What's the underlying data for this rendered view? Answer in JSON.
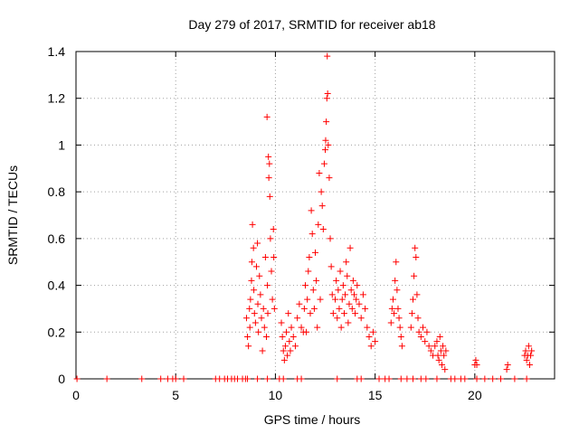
{
  "chart_data": {
    "type": "scatter",
    "title": "Day 279 of 2017, SRMTID for receiver ab18",
    "xlabel": "GPS time / hours",
    "ylabel": "SRMTID / TECUs",
    "xlim": [
      0,
      24
    ],
    "ylim": [
      0,
      1.4
    ],
    "xticks": [
      0,
      5,
      10,
      15,
      20
    ],
    "yticks": [
      0,
      0.2,
      0.4,
      0.6,
      0.8,
      1.0,
      1.2,
      1.4
    ],
    "xtick_labels": [
      "0",
      "5",
      "10",
      "15",
      "20"
    ],
    "ytick_labels": [
      "0",
      "0.2",
      "0.4",
      "0.6",
      "0.8",
      "1",
      "1.2",
      "1.4"
    ],
    "grid": true,
    "marker": "+",
    "color": "#ff0000",
    "series": [
      {
        "name": "SRMTID",
        "points": [
          [
            0.05,
            0
          ],
          [
            1.55,
            0
          ],
          [
            3.3,
            0
          ],
          [
            4.25,
            0
          ],
          [
            4.6,
            0
          ],
          [
            4.85,
            0
          ],
          [
            5.0,
            0
          ],
          [
            5.4,
            0
          ],
          [
            7.0,
            0
          ],
          [
            7.2,
            0
          ],
          [
            7.45,
            0
          ],
          [
            7.6,
            0
          ],
          [
            7.8,
            0
          ],
          [
            7.95,
            0
          ],
          [
            8.1,
            0
          ],
          [
            8.35,
            0
          ],
          [
            8.5,
            0
          ],
          [
            8.6,
            0
          ],
          [
            9.1,
            0
          ],
          [
            9.6,
            0
          ],
          [
            10.2,
            0
          ],
          [
            10.4,
            0
          ],
          [
            11.1,
            0
          ],
          [
            11.3,
            0
          ],
          [
            13.1,
            0
          ],
          [
            14.1,
            0
          ],
          [
            14.3,
            0
          ],
          [
            15.2,
            0
          ],
          [
            15.5,
            0
          ],
          [
            15.7,
            0
          ],
          [
            16.3,
            0
          ],
          [
            16.6,
            0
          ],
          [
            16.9,
            0
          ],
          [
            17.3,
            0
          ],
          [
            17.55,
            0
          ],
          [
            18.1,
            0
          ],
          [
            18.8,
            0
          ],
          [
            19.0,
            0
          ],
          [
            19.3,
            0
          ],
          [
            19.5,
            0
          ],
          [
            20.1,
            0
          ],
          [
            20.5,
            0
          ],
          [
            20.9,
            0
          ],
          [
            21.3,
            0
          ],
          [
            22.0,
            0
          ],
          [
            22.6,
            0
          ],
          [
            8.55,
            0.26
          ],
          [
            8.6,
            0.18
          ],
          [
            8.65,
            0.14
          ],
          [
            8.7,
            0.3
          ],
          [
            8.72,
            0.22
          ],
          [
            8.75,
            0.34
          ],
          [
            8.8,
            0.42
          ],
          [
            8.82,
            0.5
          ],
          [
            8.85,
            0.66
          ],
          [
            8.9,
            0.56
          ],
          [
            8.92,
            0.38
          ],
          [
            8.95,
            0.28
          ],
          [
            9.0,
            0.24
          ],
          [
            9.05,
            0.48
          ],
          [
            9.1,
            0.58
          ],
          [
            9.12,
            0.32
          ],
          [
            9.15,
            0.2
          ],
          [
            9.2,
            0.44
          ],
          [
            9.25,
            0.36
          ],
          [
            9.3,
            0.26
          ],
          [
            9.35,
            0.12
          ],
          [
            9.4,
            0.3
          ],
          [
            9.45,
            0.22
          ],
          [
            9.5,
            0.52
          ],
          [
            9.55,
            0.18
          ],
          [
            9.6,
            0.4
          ],
          [
            9.62,
            0.28
          ],
          [
            9.65,
            0.95
          ],
          [
            9.67,
            0.86
          ],
          [
            9.7,
            0.92
          ],
          [
            9.72,
            0.78
          ],
          [
            9.75,
            0.6
          ],
          [
            9.8,
            0.46
          ],
          [
            9.85,
            0.34
          ],
          [
            9.58,
            1.12
          ],
          [
            9.9,
            0.64
          ],
          [
            9.92,
            0.52
          ],
          [
            9.95,
            0.3
          ],
          [
            10.3,
            0.24
          ],
          [
            10.35,
            0.18
          ],
          [
            10.4,
            0.12
          ],
          [
            10.45,
            0.08
          ],
          [
            10.5,
            0.14
          ],
          [
            10.55,
            0.2
          ],
          [
            10.6,
            0.1
          ],
          [
            10.65,
            0.28
          ],
          [
            10.7,
            0.16
          ],
          [
            10.75,
            0.12
          ],
          [
            10.8,
            0.22
          ],
          [
            10.9,
            0.18
          ],
          [
            11.0,
            0.14
          ],
          [
            11.1,
            0.26
          ],
          [
            11.2,
            0.32
          ],
          [
            11.3,
            0.22
          ],
          [
            11.4,
            0.2
          ],
          [
            11.45,
            0.3
          ],
          [
            11.5,
            0.4
          ],
          [
            11.55,
            0.2
          ],
          [
            11.6,
            0.34
          ],
          [
            11.65,
            0.46
          ],
          [
            11.7,
            0.52
          ],
          [
            11.75,
            0.28
          ],
          [
            11.8,
            0.72
          ],
          [
            11.85,
            0.62
          ],
          [
            11.9,
            0.38
          ],
          [
            11.95,
            0.3
          ],
          [
            12.0,
            0.54
          ],
          [
            12.05,
            0.42
          ],
          [
            12.1,
            0.22
          ],
          [
            12.15,
            0.66
          ],
          [
            12.2,
            0.88
          ],
          [
            12.25,
            0.34
          ],
          [
            12.3,
            0.8
          ],
          [
            12.35,
            0.74
          ],
          [
            12.4,
            0.64
          ],
          [
            12.45,
            0.92
          ],
          [
            12.5,
            0.98
          ],
          [
            12.52,
            1.02
          ],
          [
            12.55,
            1.1
          ],
          [
            12.58,
            1.2
          ],
          [
            12.6,
            1.38
          ],
          [
            12.62,
            1.22
          ],
          [
            12.65,
            1.0
          ],
          [
            12.7,
            0.86
          ],
          [
            12.75,
            0.6
          ],
          [
            12.8,
            0.48
          ],
          [
            12.85,
            0.36
          ],
          [
            12.9,
            0.28
          ],
          [
            13.0,
            0.34
          ],
          [
            13.05,
            0.42
          ],
          [
            13.1,
            0.26
          ],
          [
            13.15,
            0.38
          ],
          [
            13.2,
            0.3
          ],
          [
            13.25,
            0.46
          ],
          [
            13.3,
            0.22
          ],
          [
            13.35,
            0.34
          ],
          [
            13.4,
            0.4
          ],
          [
            13.45,
            0.28
          ],
          [
            13.5,
            0.36
          ],
          [
            13.55,
            0.5
          ],
          [
            13.6,
            0.44
          ],
          [
            13.65,
            0.24
          ],
          [
            13.7,
            0.32
          ],
          [
            13.75,
            0.56
          ],
          [
            13.8,
            0.38
          ],
          [
            13.85,
            0.3
          ],
          [
            13.9,
            0.42
          ],
          [
            13.95,
            0.36
          ],
          [
            14.0,
            0.28
          ],
          [
            14.05,
            0.34
          ],
          [
            14.1,
            0.4
          ],
          [
            14.2,
            0.32
          ],
          [
            14.3,
            0.26
          ],
          [
            14.4,
            0.36
          ],
          [
            14.5,
            0.3
          ],
          [
            14.6,
            0.22
          ],
          [
            14.7,
            0.18
          ],
          [
            14.8,
            0.14
          ],
          [
            14.9,
            0.2
          ],
          [
            15.0,
            0.16
          ],
          [
            15.8,
            0.24
          ],
          [
            15.85,
            0.3
          ],
          [
            15.9,
            0.34
          ],
          [
            15.95,
            0.28
          ],
          [
            16.0,
            0.42
          ],
          [
            16.05,
            0.5
          ],
          [
            16.1,
            0.38
          ],
          [
            16.15,
            0.3
          ],
          [
            16.2,
            0.26
          ],
          [
            16.25,
            0.22
          ],
          [
            16.3,
            0.18
          ],
          [
            16.35,
            0.14
          ],
          [
            16.8,
            0.22
          ],
          [
            16.85,
            0.28
          ],
          [
            16.9,
            0.34
          ],
          [
            16.95,
            0.44
          ],
          [
            17.0,
            0.56
          ],
          [
            17.05,
            0.52
          ],
          [
            17.1,
            0.36
          ],
          [
            17.15,
            0.26
          ],
          [
            17.2,
            0.2
          ],
          [
            17.3,
            0.18
          ],
          [
            17.4,
            0.22
          ],
          [
            17.5,
            0.16
          ],
          [
            17.6,
            0.2
          ],
          [
            17.7,
            0.14
          ],
          [
            17.8,
            0.12
          ],
          [
            17.9,
            0.1
          ],
          [
            18.0,
            0.14
          ],
          [
            18.1,
            0.16
          ],
          [
            18.15,
            0.1
          ],
          [
            18.2,
            0.08
          ],
          [
            18.25,
            0.18
          ],
          [
            18.3,
            0.12
          ],
          [
            18.35,
            0.06
          ],
          [
            18.4,
            0.14
          ],
          [
            18.45,
            0.1
          ],
          [
            18.5,
            0.04
          ],
          [
            18.55,
            0.12
          ],
          [
            20.0,
            0.06
          ],
          [
            20.05,
            0.08
          ],
          [
            20.1,
            0.06
          ],
          [
            21.6,
            0.04
          ],
          [
            21.65,
            0.06
          ],
          [
            22.5,
            0.1
          ],
          [
            22.55,
            0.12
          ],
          [
            22.6,
            0.08
          ],
          [
            22.65,
            0.1
          ],
          [
            22.7,
            0.14
          ],
          [
            22.75,
            0.06
          ],
          [
            22.8,
            0.1
          ],
          [
            22.85,
            0.12
          ]
        ]
      }
    ]
  }
}
